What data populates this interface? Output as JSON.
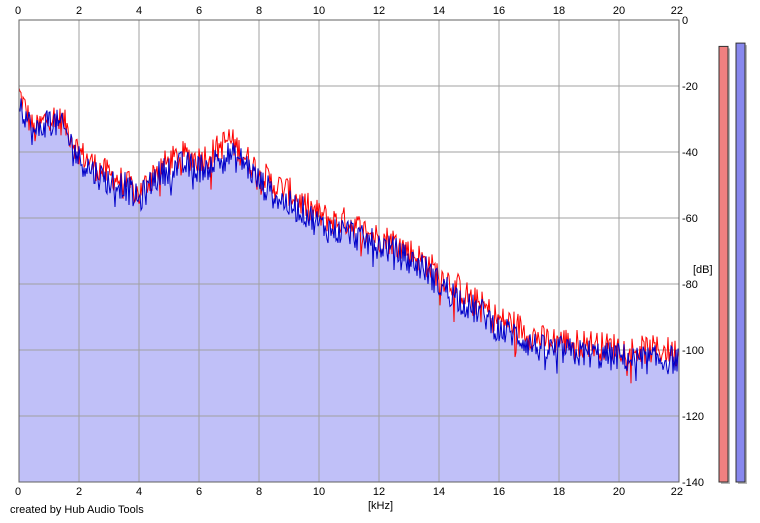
{
  "credit": "created by Hub Audio Tools",
  "chart_data": {
    "type": "area",
    "xlabel": "[kHz]",
    "ylabel": "[dB]",
    "xlim": [
      0,
      22
    ],
    "ylim": [
      -140,
      0
    ],
    "x_ticks": [
      "0",
      "2",
      "4",
      "6",
      "8",
      "10",
      "12",
      "14",
      "16",
      "18",
      "20",
      "22"
    ],
    "y_ticks": [
      "0",
      "-20",
      "-40",
      "-60",
      "-80",
      "-100",
      "-120",
      "-140"
    ],
    "grid": true,
    "plot_background": "#ffffff",
    "fill_color": "#c0c0f8",
    "series": [
      {
        "color": "#ff0000",
        "x": [
          0,
          0.5,
          1,
          1.5,
          2,
          2.5,
          3,
          3.5,
          4,
          4.5,
          5,
          5.5,
          6,
          6.5,
          7,
          7.5,
          8,
          8.5,
          9,
          9.5,
          10,
          10.5,
          11,
          11.5,
          12,
          12.5,
          13,
          13.5,
          14,
          14.5,
          15,
          15.5,
          16,
          16.5,
          17,
          17.5,
          18,
          18.5,
          19,
          19.5,
          20,
          20.5,
          21,
          21.5,
          22
        ],
        "values": [
          -22,
          -34,
          -29,
          -31,
          -40,
          -44,
          -47,
          -49,
          -53,
          -46,
          -43,
          -41,
          -42,
          -40,
          -36,
          -41,
          -46,
          -50,
          -52,
          -56,
          -59,
          -61,
          -61,
          -64,
          -66,
          -67,
          -70,
          -73,
          -77,
          -80,
          -84,
          -87,
          -91,
          -92,
          -95,
          -97,
          -97,
          -98,
          -98,
          -99,
          -99,
          -100,
          -100,
          -100,
          -101
        ]
      },
      {
        "color": "#0000c8",
        "x": [
          0,
          0.5,
          1,
          1.5,
          2,
          2.5,
          3,
          3.5,
          4,
          4.5,
          5,
          5.5,
          6,
          6.5,
          7,
          7.5,
          8,
          8.5,
          9,
          9.5,
          10,
          10.5,
          11,
          11.5,
          12,
          12.5,
          13,
          13.5,
          14,
          14.5,
          15,
          15.5,
          16,
          16.5,
          17,
          17.5,
          18,
          18.5,
          19,
          19.5,
          20,
          20.5,
          21,
          21.5,
          22
        ],
        "values": [
          -24,
          -35,
          -30,
          -33,
          -42,
          -46,
          -49,
          -50,
          -55,
          -48,
          -45,
          -44,
          -45,
          -43,
          -41,
          -43,
          -49,
          -53,
          -56,
          -58,
          -62,
          -64,
          -64,
          -67,
          -68,
          -70,
          -73,
          -75,
          -80,
          -83,
          -87,
          -89,
          -94,
          -95,
          -98,
          -100,
          -100,
          -101,
          -101,
          -102,
          -102,
          -103,
          -103,
          -103,
          -103
        ]
      }
    ],
    "level_meters": [
      {
        "color": "#f08080",
        "value": -8
      },
      {
        "color": "#8888ee",
        "value": -7
      }
    ]
  }
}
